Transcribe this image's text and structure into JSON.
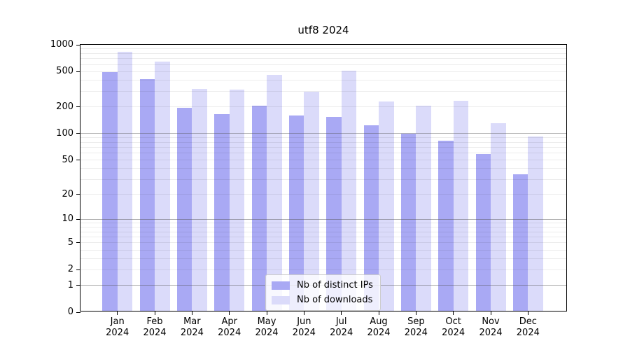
{
  "title": "utf8 2024",
  "colors": {
    "distinct_ips": "#a9a9f4",
    "downloads": "#dbdbfa",
    "axis": "#000000",
    "grid_major": "#a0a0a0",
    "grid_minor": "#ececec",
    "legend_border": "#cccccc"
  },
  "y_axis": {
    "ticks": [
      {
        "label": "1000",
        "value": 1000
      },
      {
        "label": "500",
        "value": 500
      },
      {
        "label": "200",
        "value": 200
      },
      {
        "label": "100",
        "value": 100
      },
      {
        "label": "50",
        "value": 50
      },
      {
        "label": "20",
        "value": 20
      },
      {
        "label": "10",
        "value": 10
      },
      {
        "label": "5",
        "value": 5
      },
      {
        "label": "2",
        "value": 2
      },
      {
        "label": "1",
        "value": 1
      },
      {
        "label": "0",
        "value": 0
      }
    ]
  },
  "x_axis": {
    "months": [
      {
        "month": "Jan",
        "year": "2024"
      },
      {
        "month": "Feb",
        "year": "2024"
      },
      {
        "month": "Mar",
        "year": "2024"
      },
      {
        "month": "Apr",
        "year": "2024"
      },
      {
        "month": "May",
        "year": "2024"
      },
      {
        "month": "Jun",
        "year": "2024"
      },
      {
        "month": "Jul",
        "year": "2024"
      },
      {
        "month": "Aug",
        "year": "2024"
      },
      {
        "month": "Sep",
        "year": "2024"
      },
      {
        "month": "Oct",
        "year": "2024"
      },
      {
        "month": "Nov",
        "year": "2024"
      },
      {
        "month": "Dec",
        "year": "2024"
      }
    ]
  },
  "legend": {
    "items": [
      {
        "label": "Nb of distinct IPs",
        "color_key": "distinct_ips"
      },
      {
        "label": "Nb of downloads",
        "color_key": "downloads"
      }
    ]
  },
  "chart_data": {
    "type": "bar",
    "title": "utf8 2024",
    "categories": [
      "Jan 2024",
      "Feb 2024",
      "Mar 2024",
      "Apr 2024",
      "May 2024",
      "Jun 2024",
      "Jul 2024",
      "Aug 2024",
      "Sep 2024",
      "Oct 2024",
      "Nov 2024",
      "Dec 2024"
    ],
    "series": [
      {
        "name": "Nb of distinct IPs",
        "values": [
          480,
          400,
          190,
          160,
          200,
          155,
          148,
          120,
          96,
          80,
          56,
          33
        ]
      },
      {
        "name": "Nb of downloads",
        "values": [
          800,
          630,
          310,
          300,
          445,
          287,
          490,
          222,
          200,
          226,
          126,
          90
        ]
      }
    ],
    "xlabel": "",
    "ylabel": "",
    "yscale": "log1p (position = log10(value+1))",
    "ylim": [
      0,
      1000
    ],
    "yticks": [
      0,
      1,
      2,
      5,
      10,
      20,
      50,
      100,
      200,
      500,
      1000
    ],
    "grid": {
      "major_values": [
        1,
        10,
        100
      ],
      "minor_values": [
        2,
        3,
        4,
        5,
        6,
        7,
        8,
        9,
        20,
        30,
        40,
        50,
        60,
        70,
        80,
        90,
        200,
        300,
        400,
        500,
        600,
        700,
        800,
        900
      ]
    },
    "legend_position": "lower center"
  }
}
